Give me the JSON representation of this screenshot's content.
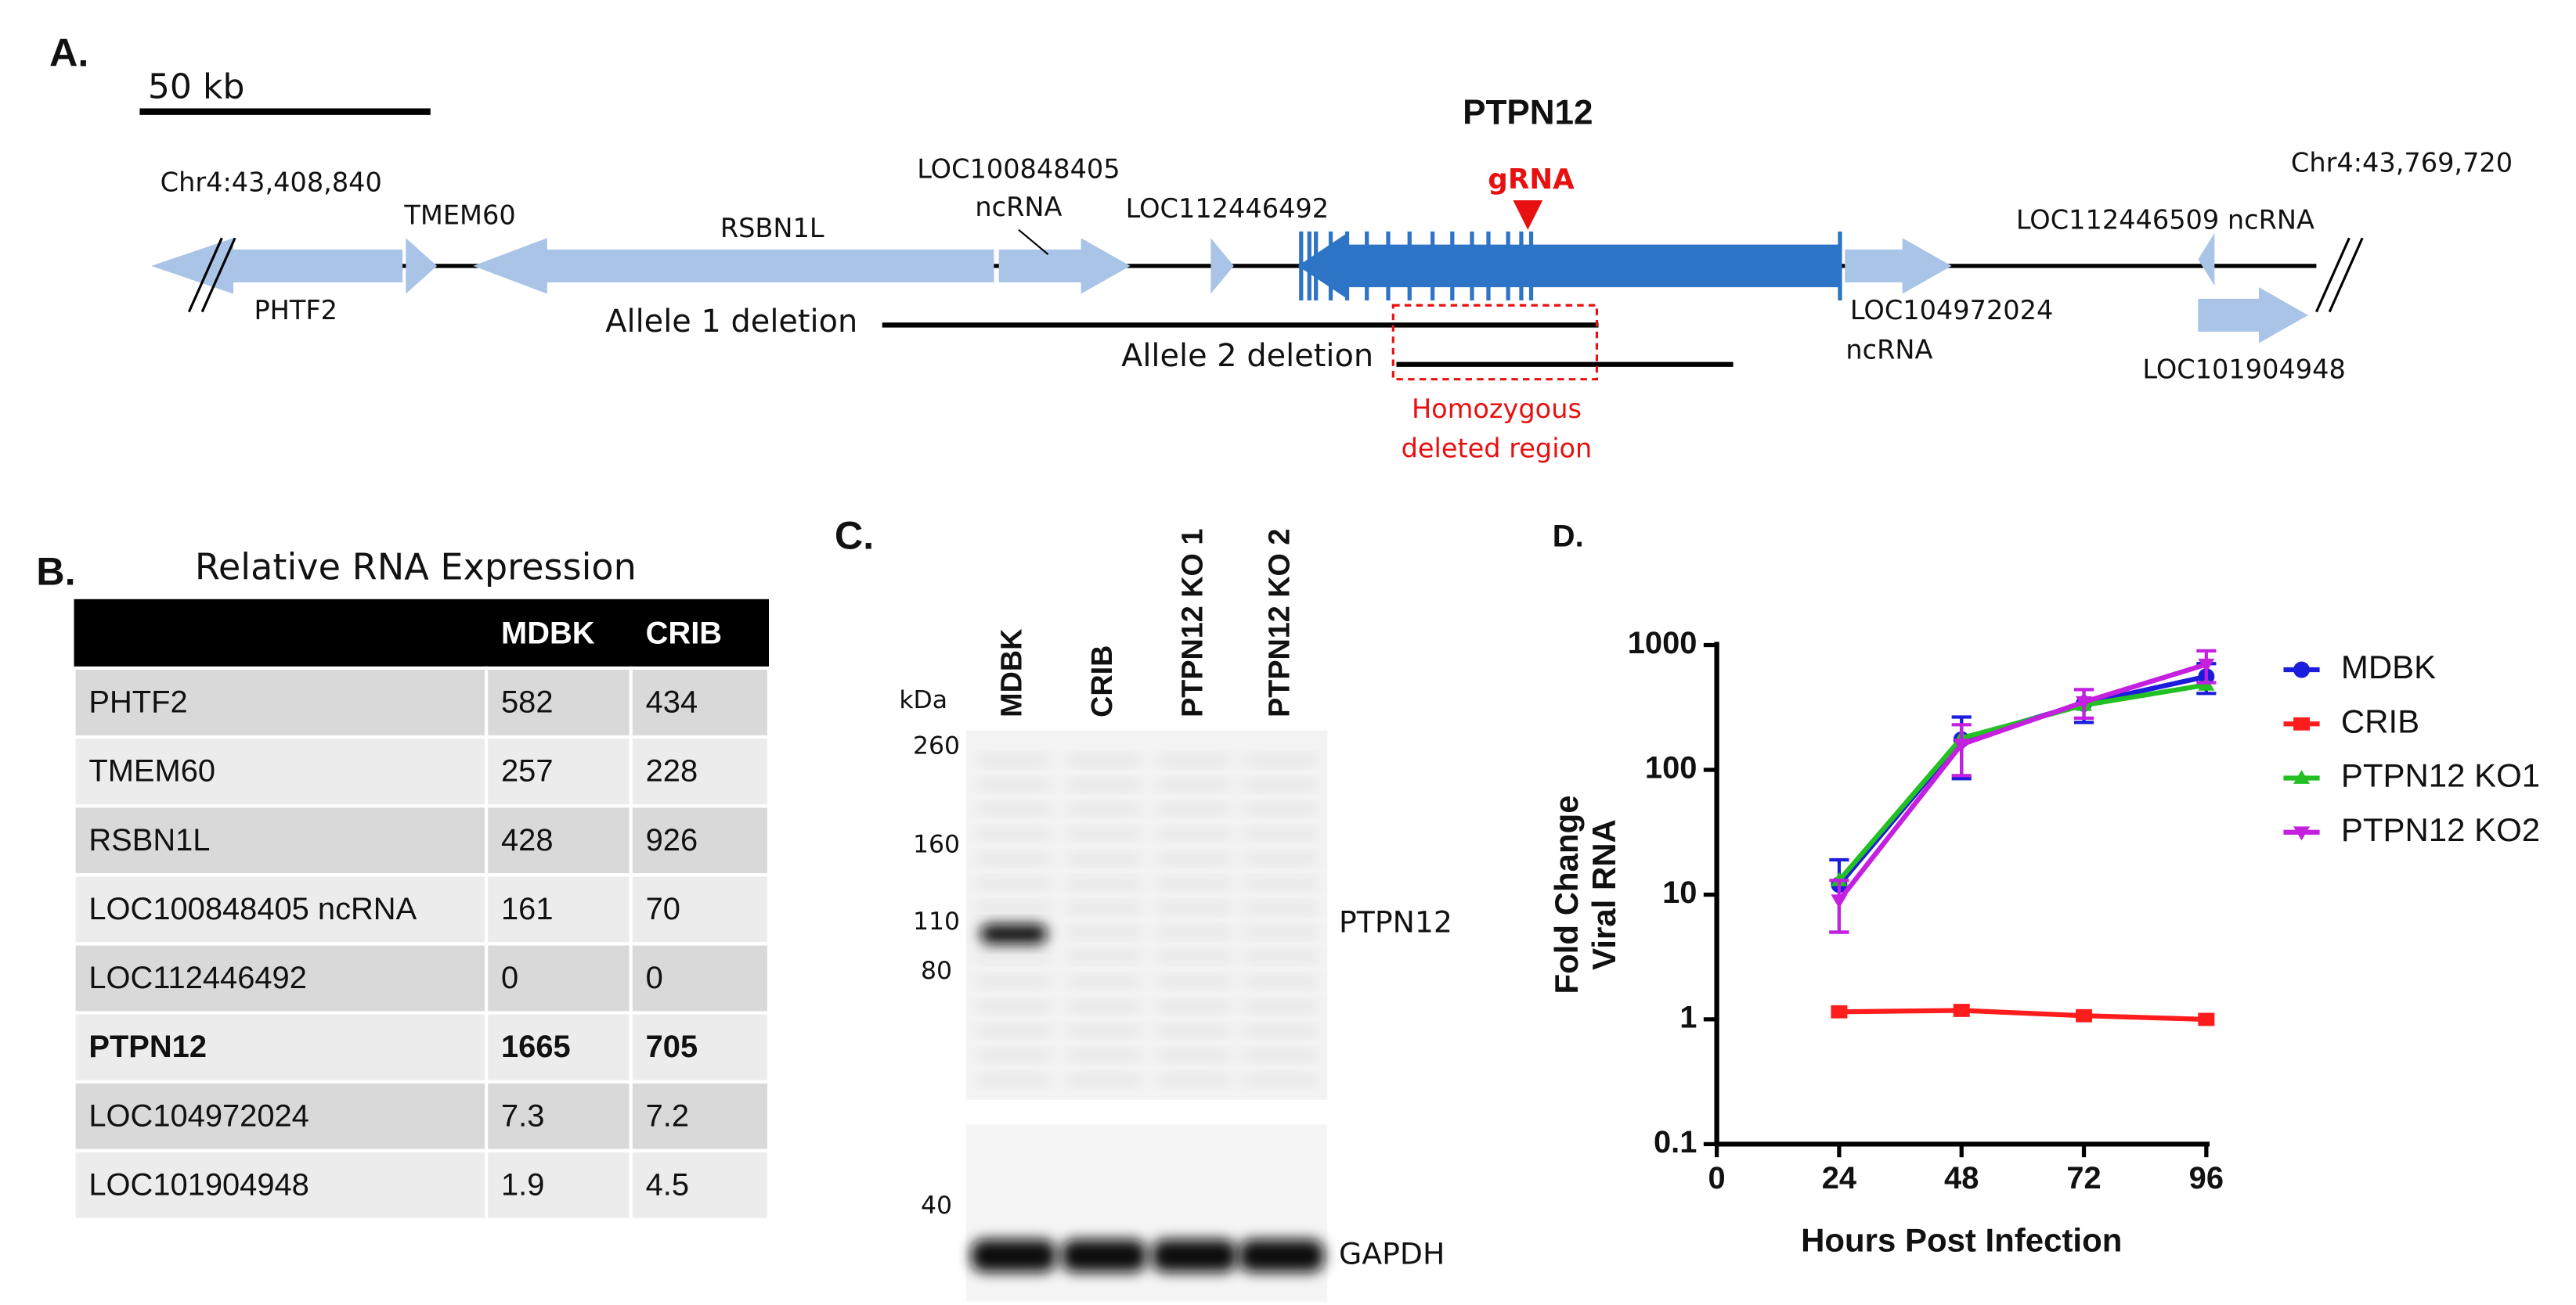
{
  "panel_a": {
    "label": "A.",
    "scale_bar": "50 kb",
    "gene": "PTPN12",
    "grna": "gRNA",
    "start": "Chr4:43,408,840",
    "end": "Chr4:43,769,720",
    "gene_labels": [
      "PHTF2",
      "TMEM60",
      "RSBN1L",
      "LOC100848405",
      "ncRNA",
      "LOC112446492",
      "LOC104972024",
      "ncRNA",
      "LOC112446509 ncRNA",
      "LOC101904948"
    ],
    "allele1": "Allele 1 deletion",
    "allele2": "Allele 2 deletion",
    "homozygous": [
      "Homozygous",
      "deleted region"
    ]
  },
  "panel_b": {
    "label": "B.",
    "title": "Relative RNA Expression",
    "header": [
      "MDBK",
      "CRIB"
    ],
    "rows": [
      [
        "PHTF2",
        582,
        434
      ],
      [
        "TMEM60",
        257,
        228
      ],
      [
        "RSBN1L",
        428,
        926
      ],
      [
        "LOC100848405 ncRNA",
        161,
        70
      ],
      [
        "LOC112446492",
        0,
        0
      ],
      [
        "PTPN12",
        1665,
        705
      ],
      [
        "LOC104972024",
        7.3,
        7.2
      ],
      [
        "LOC101904948",
        1.9,
        4.5
      ]
    ]
  },
  "panel_c": {
    "label": "C.",
    "lanes": [
      "MDBK",
      "CRIB",
      "PTPN12 KO 1",
      "PTPN12 KO 2"
    ],
    "unit": "kDa",
    "markers": [
      260,
      160,
      110,
      80,
      40
    ],
    "bands": [
      "PTPN12",
      "GAPDH"
    ]
  },
  "chart_data": {
    "type": "line",
    "label": "D.",
    "x_label": "Hours Post Infection",
    "y_label": [
      "Fold Change",
      "Viral RNA"
    ],
    "x": [
      24,
      48,
      72,
      96
    ],
    "xlim": [
      0,
      96
    ],
    "xticks": [
      0,
      24,
      48,
      72,
      96
    ],
    "yscale": "log",
    "ylim": [
      0.1,
      1000
    ],
    "yticks": [
      0.1,
      1,
      10,
      100,
      1000
    ],
    "legend": "right",
    "series": [
      {
        "name": "MDBK",
        "color": "#1c1cdc",
        "marker": "o",
        "values": [
          12,
          175,
          340,
          560
        ],
        "errors": [
          7,
          90,
          100,
          150
        ]
      },
      {
        "name": "CRIB",
        "color": "#ff1c1c",
        "marker": "s",
        "values": [
          1.15,
          1.18,
          1.07,
          1.0
        ]
      },
      {
        "name": "PTPN12 KO1",
        "color": "#22c022",
        "marker": "^",
        "values": [
          13,
          180,
          330,
          480
        ]
      },
      {
        "name": "PTPN12 KO2",
        "color": "#c51fe0",
        "marker": "v",
        "values": [
          9,
          160,
          350,
          700
        ],
        "errors": [
          4,
          70,
          90,
          200
        ]
      }
    ]
  }
}
